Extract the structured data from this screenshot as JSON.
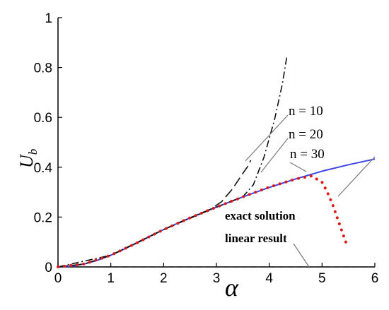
{
  "chart_data": {
    "type": "line",
    "xlabel": "α",
    "ylabel": "U",
    "ylabel_sub": "b",
    "xlim": [
      0,
      6
    ],
    "ylim": [
      0,
      1
    ],
    "xticks": [
      "0",
      "1",
      "2",
      "3",
      "4",
      "5",
      "6"
    ],
    "yticks": [
      "0",
      "0.2",
      "0.4",
      "0.6",
      "0.8",
      "1"
    ],
    "grid": false,
    "series": [
      {
        "name": "exact solution",
        "style": "solid",
        "color": "#3b46e6",
        "x": [
          0,
          0.25,
          0.5,
          0.75,
          1,
          1.25,
          1.5,
          1.75,
          2,
          2.25,
          2.5,
          2.75,
          3,
          3.5,
          4,
          4.5,
          5,
          5.5,
          6
        ],
        "y": [
          0,
          0.003,
          0.012,
          0.027,
          0.047,
          0.071,
          0.097,
          0.124,
          0.15,
          0.174,
          0.197,
          0.218,
          0.24,
          0.281,
          0.319,
          0.353,
          0.384,
          0.41,
          0.433
        ]
      },
      {
        "name": "linear result",
        "style": "dashed",
        "color": "#222222",
        "x": [
          0,
          6
        ],
        "y": [
          0,
          0
        ]
      },
      {
        "name": "n = 10",
        "style": "long-dash",
        "color": "#111111",
        "x": [
          0,
          0.5,
          1,
          1.5,
          2,
          2.5,
          2.9,
          3.1,
          3.3,
          3.5,
          3.6,
          3.65
        ],
        "y": [
          0,
          0.012,
          0.047,
          0.097,
          0.15,
          0.197,
          0.233,
          0.262,
          0.312,
          0.375,
          0.405,
          0.428
        ]
      },
      {
        "name": "n = 20",
        "style": "dash-dot",
        "color": "#111111",
        "x": [
          0,
          1,
          2,
          3,
          3.5,
          3.7,
          3.9,
          4.1,
          4.25,
          4.33
        ],
        "y": [
          0,
          0.047,
          0.15,
          0.24,
          0.281,
          0.33,
          0.44,
          0.59,
          0.735,
          0.84
        ]
      },
      {
        "name": "n = 30",
        "style": "dotted",
        "color": "#e01818",
        "x": [
          0,
          0.5,
          1,
          1.5,
          2,
          2.5,
          3,
          3.5,
          4,
          4.5,
          4.8,
          5.0,
          5.1,
          5.2,
          5.3,
          5.45
        ],
        "y": [
          0,
          0.012,
          0.047,
          0.097,
          0.15,
          0.197,
          0.24,
          0.281,
          0.32,
          0.353,
          0.365,
          0.34,
          0.3,
          0.25,
          0.19,
          0.1
        ]
      }
    ],
    "annotations": [
      {
        "text": "n = 10"
      },
      {
        "text": "n = 20"
      },
      {
        "text": "n = 30"
      },
      {
        "text": "exact solution"
      },
      {
        "text": "linear result"
      }
    ]
  }
}
